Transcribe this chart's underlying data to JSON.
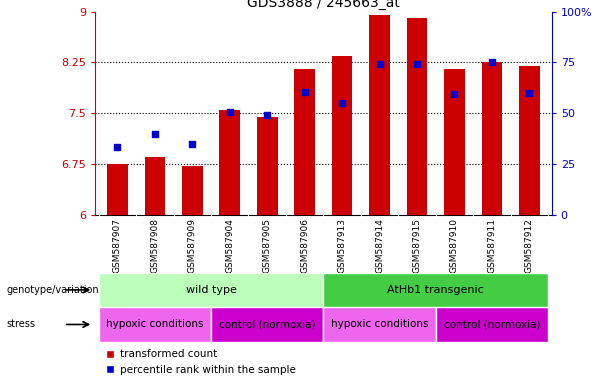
{
  "title": "GDS3888 / 245663_at",
  "samples": [
    "GSM587907",
    "GSM587908",
    "GSM587909",
    "GSM587904",
    "GSM587905",
    "GSM587906",
    "GSM587913",
    "GSM587914",
    "GSM587915",
    "GSM587910",
    "GSM587911",
    "GSM587912"
  ],
  "bar_values": [
    6.75,
    6.85,
    6.72,
    7.55,
    7.45,
    8.15,
    8.35,
    8.95,
    8.9,
    8.15,
    8.25,
    8.2
  ],
  "percentile_values": [
    7.0,
    7.2,
    7.05,
    7.52,
    7.48,
    7.82,
    7.65,
    8.22,
    8.22,
    7.78,
    8.25,
    7.8
  ],
  "ylim_left": [
    6,
    9
  ],
  "ylim_right": [
    0,
    100
  ],
  "yticks_left": [
    6,
    6.75,
    7.5,
    8.25,
    9
  ],
  "yticks_right": [
    0,
    25,
    50,
    75,
    100
  ],
  "ytick_labels_left": [
    "6",
    "6.75",
    "7.5",
    "8.25",
    "9"
  ],
  "ytick_labels_right": [
    "0",
    "25",
    "50",
    "75",
    "100%"
  ],
  "bar_color": "#cc0000",
  "dot_color": "#0000cc",
  "bar_bottom": 6.0,
  "grid_values": [
    6.75,
    7.5,
    8.25
  ],
  "genotype_groups": [
    {
      "label": "wild type",
      "start": 0,
      "end": 6,
      "color": "#bbffbb"
    },
    {
      "label": "AtHb1 transgenic",
      "start": 6,
      "end": 12,
      "color": "#44cc44"
    }
  ],
  "stress_groups": [
    {
      "label": "hypoxic conditions",
      "start": 0,
      "end": 3,
      "color": "#ee66ee"
    },
    {
      "label": "control (normoxia)",
      "start": 3,
      "end": 6,
      "color": "#cc00cc"
    },
    {
      "label": "hypoxic conditions",
      "start": 6,
      "end": 9,
      "color": "#ee66ee"
    },
    {
      "label": "control (normoxia)",
      "start": 9,
      "end": 12,
      "color": "#cc00cc"
    }
  ],
  "legend_items": [
    {
      "label": "transformed count",
      "color": "#cc0000"
    },
    {
      "label": "percentile rank within the sample",
      "color": "#0000cc"
    }
  ],
  "tick_label_color_left": "#cc0000",
  "tick_label_color_right": "#0000cc",
  "row_label_genotype": "genotype/variation",
  "row_label_stress": "stress",
  "bar_width": 0.55,
  "background_color": "#ffffff",
  "xlim": [
    -0.6,
    11.6
  ]
}
